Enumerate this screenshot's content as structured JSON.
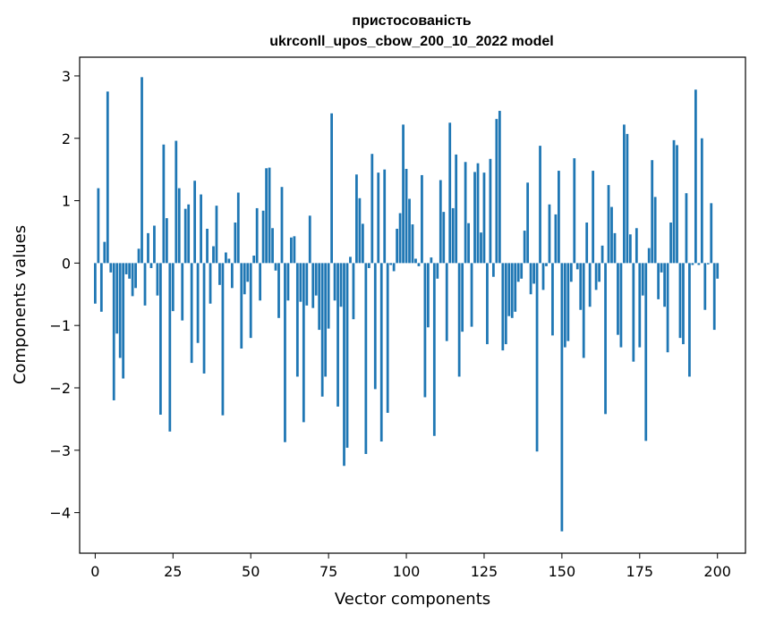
{
  "chart_data": {
    "type": "bar",
    "title_line1": "пристосованість",
    "title_line2": "ukrconll_upos_cbow_200_10_2022 model",
    "xlabel": "Vector components",
    "ylabel": "Components values",
    "xlim": [
      -5,
      209
    ],
    "ylim": [
      -4.65,
      3.3
    ],
    "xticks": [
      0,
      25,
      50,
      75,
      100,
      125,
      150,
      175,
      200
    ],
    "xtick_labels": [
      "0",
      "25",
      "50",
      "75",
      "100",
      "125",
      "150",
      "175",
      "200"
    ],
    "yticks": [
      -4,
      -3,
      -2,
      -1,
      0,
      1,
      2,
      3
    ],
    "ytick_labels": [
      "−4",
      "−3",
      "−2",
      "−1",
      "0",
      "1",
      "2",
      "3"
    ],
    "bar_color": "#1f77b4",
    "grid": false,
    "values": [
      -0.65,
      1.2,
      -0.78,
      0.34,
      2.75,
      -0.15,
      -2.2,
      -1.13,
      -1.52,
      -1.85,
      -0.18,
      -0.25,
      -0.53,
      -0.4,
      0.23,
      2.98,
      -0.68,
      0.48,
      -0.08,
      0.6,
      -0.52,
      -2.43,
      1.9,
      0.72,
      -2.7,
      -0.77,
      1.96,
      1.2,
      -0.92,
      0.87,
      0.94,
      -1.6,
      1.32,
      -1.28,
      1.1,
      -1.77,
      0.55,
      -0.65,
      0.27,
      0.92,
      -0.35,
      -2.44,
      0.17,
      0.07,
      -0.4,
      0.65,
      1.13,
      -1.37,
      -0.5,
      -0.3,
      -1.2,
      0.12,
      0.88,
      -0.6,
      0.84,
      1.52,
      1.53,
      0.56,
      -0.12,
      -0.88,
      1.22,
      -2.87,
      -0.6,
      0.41,
      0.43,
      -1.82,
      -0.62,
      -2.55,
      -0.68,
      0.76,
      -0.72,
      -0.52,
      -1.07,
      -2.14,
      -1.82,
      -1.05,
      2.4,
      -0.6,
      -2.3,
      -0.7,
      -3.25,
      -2.96,
      0.1,
      -0.9,
      1.42,
      1.04,
      0.63,
      -3.06,
      -0.08,
      1.75,
      -2.02,
      1.45,
      -2.86,
      1.5,
      -2.4,
      -0.03,
      -0.13,
      0.55,
      0.8,
      2.22,
      1.51,
      1.03,
      0.62,
      0.07,
      -0.05,
      1.41,
      -2.15,
      -1.03,
      0.09,
      -2.77,
      -0.25,
      1.33,
      0.82,
      -1.25,
      2.25,
      0.88,
      1.74,
      -1.82,
      -1.1,
      1.62,
      0.64,
      -1.02,
      1.46,
      1.6,
      0.49,
      1.45,
      -1.3,
      1.67,
      -0.22,
      2.31,
      2.44,
      -1.4,
      -1.3,
      -0.85,
      -0.88,
      -0.78,
      -0.3,
      -0.25,
      0.52,
      1.29,
      -0.5,
      -0.33,
      -3.02,
      1.88,
      -0.43,
      -0.05,
      0.94,
      -1.16,
      0.78,
      1.48,
      -4.3,
      -1.35,
      -1.25,
      -0.3,
      1.68,
      -0.1,
      -0.75,
      -1.52,
      0.65,
      -0.7,
      1.48,
      -0.43,
      -0.3,
      0.28,
      -2.42,
      1.25,
      0.9,
      0.48,
      -1.15,
      -1.35,
      2.22,
      2.07,
      0.46,
      -1.58,
      0.56,
      -1.35,
      -0.52,
      -2.85,
      0.24,
      1.65,
      1.06,
      -0.58,
      -0.15,
      -0.7,
      -1.43,
      0.65,
      1.97,
      1.89,
      -1.2,
      -1.3,
      1.12,
      -1.82,
      -0.03,
      2.78,
      -0.03,
      2.0,
      -0.75,
      -0.02,
      0.96,
      -1.07,
      -0.25
    ]
  }
}
